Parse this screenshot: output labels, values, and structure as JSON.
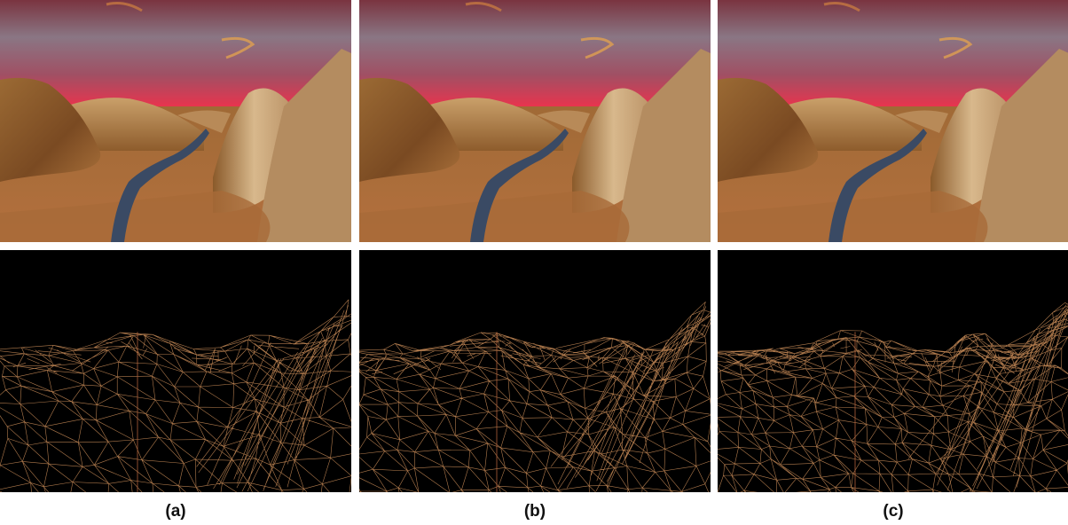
{
  "panels": [
    {
      "label": "(a)"
    },
    {
      "label": "(b)"
    },
    {
      "label": "(c)"
    }
  ]
}
